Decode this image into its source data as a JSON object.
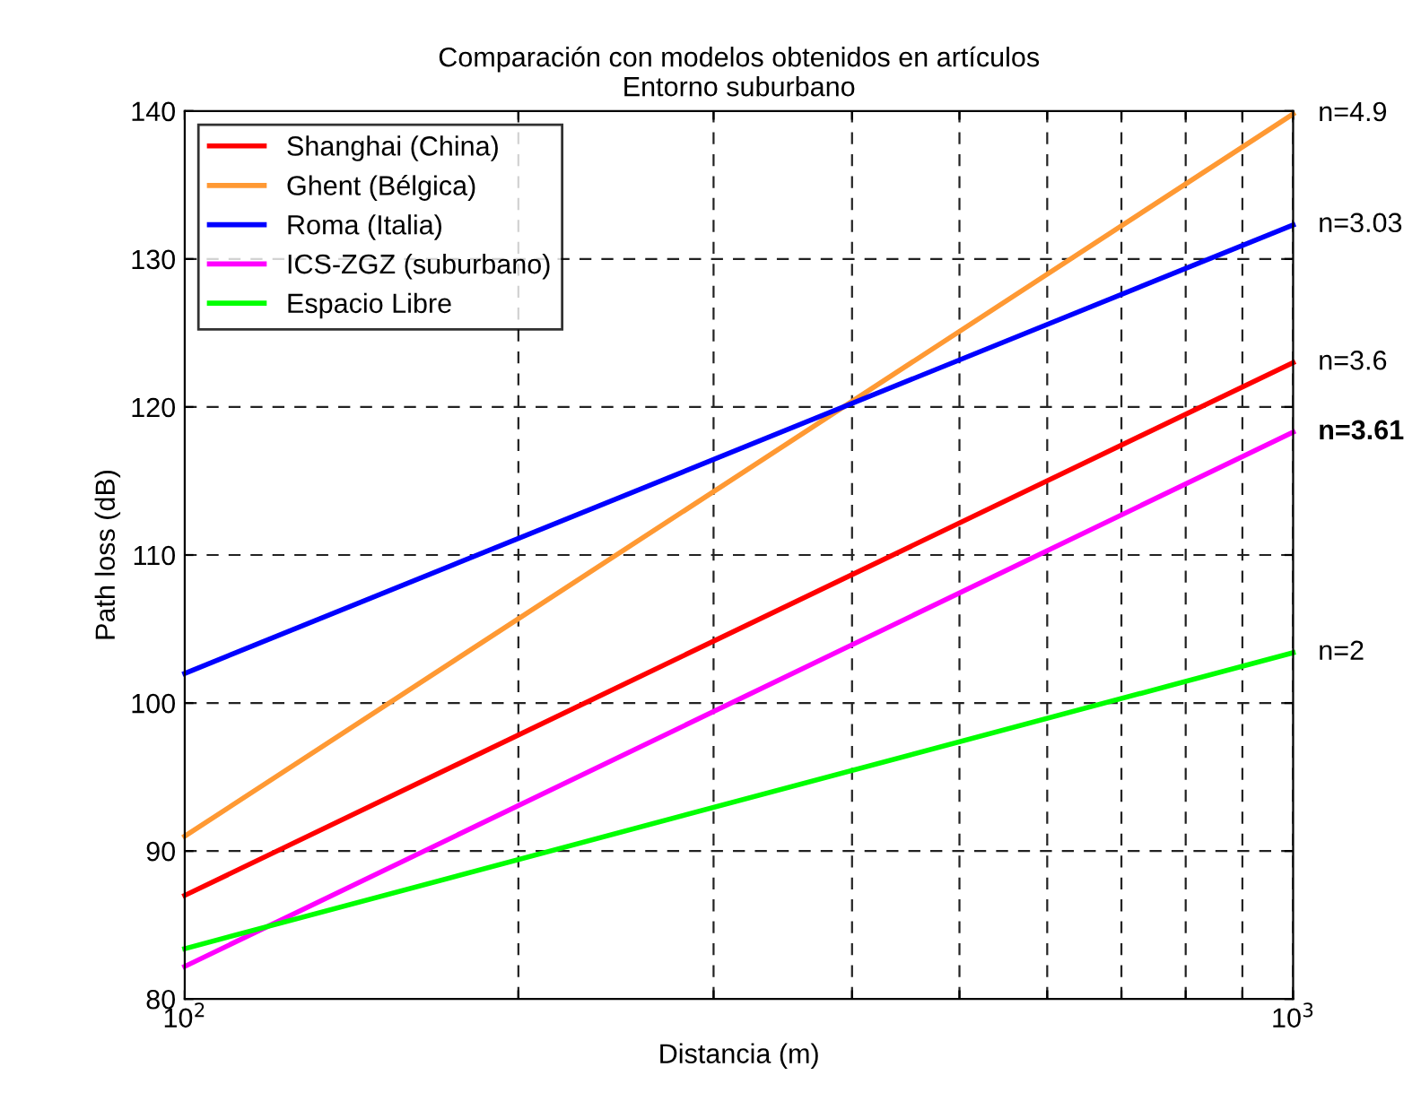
{
  "chart_data": {
    "type": "line",
    "title": "Comparación con modelos obtenidos en artículos\nEntorno suburbano",
    "xlabel": "Distancia (m)",
    "ylabel": "Path loss (dB)",
    "log": "x",
    "x": [
      100,
      1000
    ],
    "xlim": [
      100,
      1000
    ],
    "xticks": [
      {
        "value": 100,
        "label": "10$^{2}$"
      },
      {
        "value": 200,
        "label": null
      },
      {
        "value": 300,
        "label": null
      },
      {
        "value": 400,
        "label": null
      },
      {
        "value": 500,
        "label": null
      },
      {
        "value": 600,
        "label": null
      },
      {
        "value": 700,
        "label": null
      },
      {
        "value": 800,
        "label": null
      },
      {
        "value": 900,
        "label": null
      },
      {
        "value": 1000,
        "label": "10$^{3}$"
      }
    ],
    "ylim": [
      80,
      140
    ],
    "yticks": [
      80,
      90,
      100,
      110,
      120,
      130,
      140
    ],
    "grid": true,
    "legend": "top left",
    "line_style": "solid",
    "marker": "none",
    "series": [
      {
        "name": "Shanghai (China)",
        "color": "#ff0000",
        "values": [
          87,
          123
        ]
      },
      {
        "name": "Ghent (Bélgica)",
        "color": "#ff9933",
        "values": [
          91,
          139.8
        ]
      },
      {
        "name": "Roma (Italia)",
        "color": "#0000ff",
        "values": [
          102,
          132.3
        ]
      },
      {
        "name": "ICS-ZGZ (suburbano)",
        "color": "#ff00ff",
        "values": [
          82.2,
          118.3
        ]
      },
      {
        "name": "Espacio Libre",
        "color": "#00ff00",
        "values": [
          83.4,
          103.4
        ]
      }
    ],
    "annotations": [
      "n=3.6",
      "n=4.9",
      "n=3.03",
      "n=3.61",
      "n=2"
    ]
  }
}
